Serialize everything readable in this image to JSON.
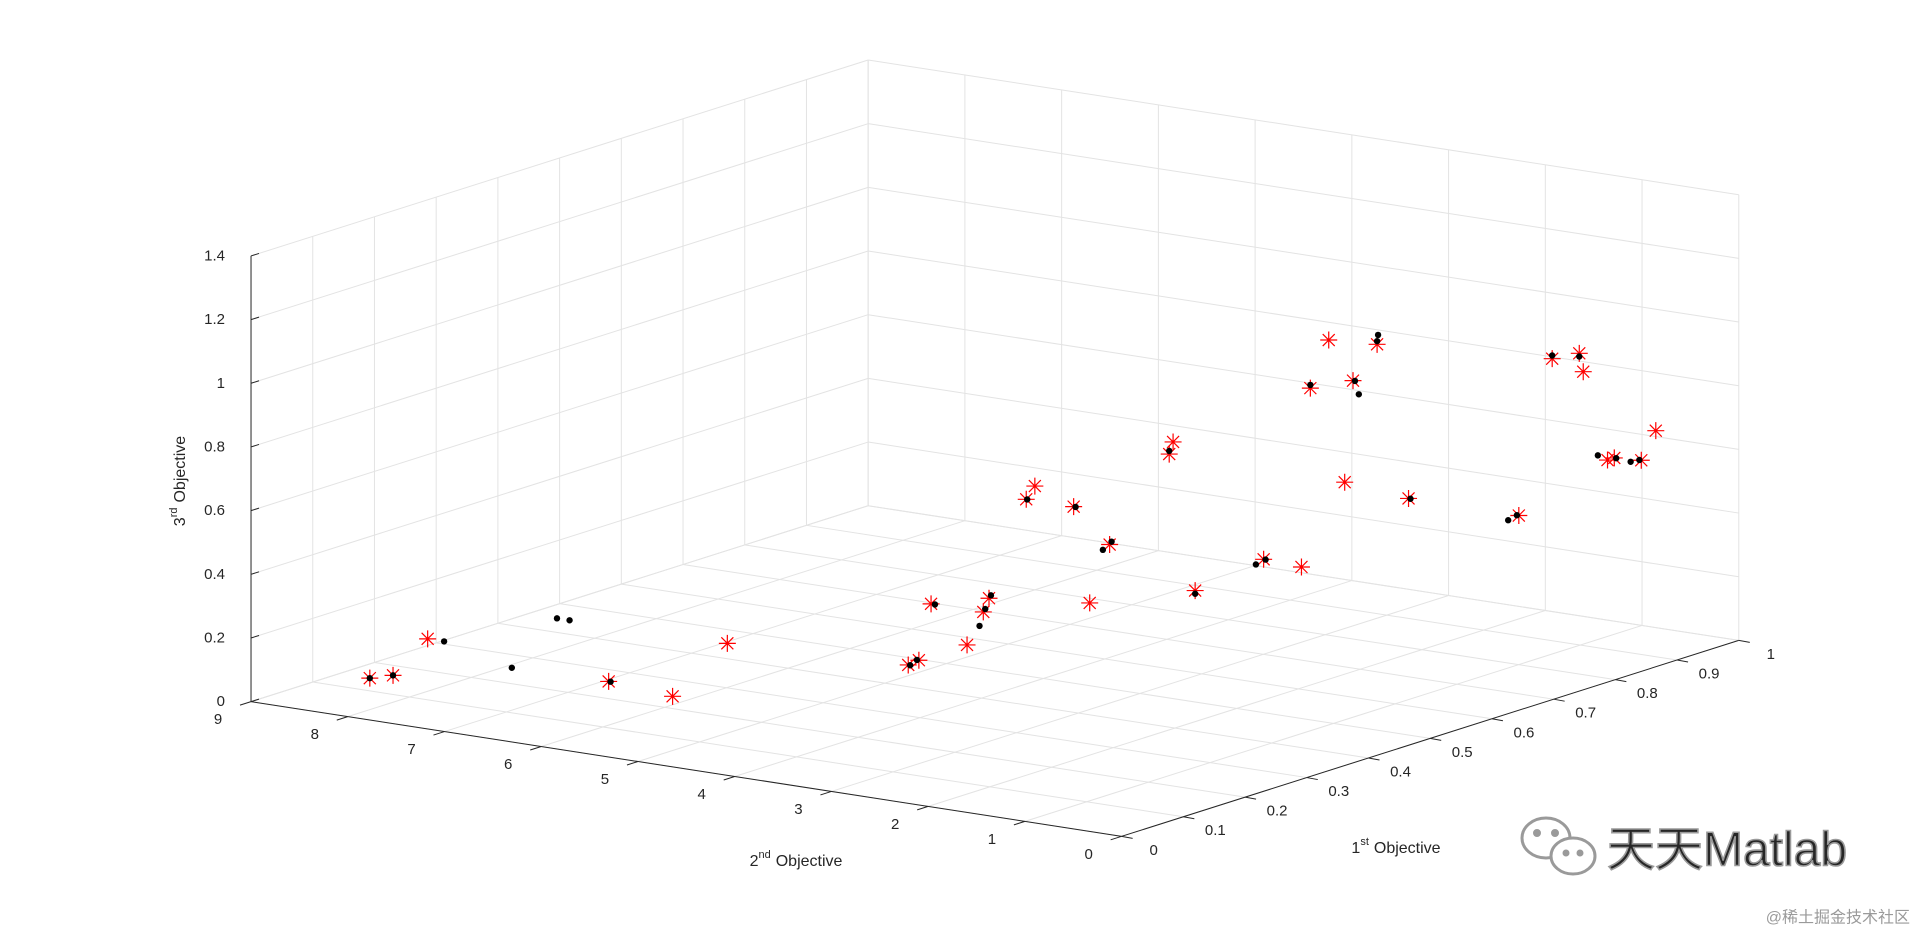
{
  "chart_data": {
    "type": "scatter3d",
    "xlabel": [
      "1",
      "st",
      "Objective"
    ],
    "ylabel": [
      "2",
      "nd",
      "Objective"
    ],
    "zlabel": [
      "3",
      "rd",
      "Objective"
    ],
    "xlim": [
      0,
      1
    ],
    "ylim": [
      0,
      9
    ],
    "zlim": [
      0,
      1.4
    ],
    "xticks": [
      0,
      0.1,
      0.2,
      0.3,
      0.4,
      0.5,
      0.6,
      0.7,
      0.8,
      0.9,
      1
    ],
    "yticks": [
      0,
      1,
      2,
      3,
      4,
      5,
      6,
      7,
      8,
      9
    ],
    "zticks": [
      0,
      0.2,
      0.4,
      0.6,
      0.8,
      1,
      1.2,
      1.4
    ],
    "grid": true,
    "series": [
      {
        "color": "#ff0000",
        "marker": "asterisk",
        "x": [
          0.1,
          0.1,
          0.2,
          0.15,
          0.1,
          0.3,
          0.3,
          0.3,
          0.5,
          0.4,
          0.5,
          0.55,
          0.8,
          0.85,
          0.8,
          0.5,
          0.7,
          0.9,
          0.9,
          0.5,
          0.6,
          0.55,
          0.95,
          0.95,
          0.7,
          0.9,
          0.95,
          0.7,
          0.7,
          0.95,
          0.95,
          0.9,
          0.85,
          0.85,
          0.9,
          0.9
        ],
        "y": [
          8.41,
          8.17,
          8.45,
          6.26,
          5.28,
          5.99,
          4.12,
          4.01,
          5.16,
          4.15,
          4.62,
          4.88,
          6.09,
          6.32,
          5.6,
          3.52,
          4.59,
          5.25,
          5.21,
          2.43,
          2.36,
          1.65,
          4.11,
          3.92,
          2.16,
          3.35,
          3.42,
          1.5,
          0.36,
          1.61,
          1.33,
          0.97,
          0.4,
          0.33,
          0.37,
          0.22
        ],
        "z": [
          0.04,
          0.06,
          0.1,
          0.1,
          0.13,
          0.14,
          0.16,
          0.18,
          0.18,
          0.16,
          0.18,
          0.18,
          0.28,
          0.28,
          0.28,
          0.26,
          0.27,
          0.4,
          0.44,
          0.35,
          0.39,
          0.43,
          0.63,
          0.79,
          0.58,
          0.72,
          0.8,
          0.56,
          0.56,
          0.84,
          0.87,
          0.86,
          0.64,
          0.65,
          0.61,
          0.71
        ]
      },
      {
        "color": "#000000",
        "marker": "dot",
        "x": [
          0.2,
          0.2,
          0.35,
          0.35,
          0.45,
          0.7,
          0.6,
          0.9,
          0.95,
          0.7,
          0.85,
          0.9,
          0.1,
          0.1,
          0.15,
          0.3,
          0.3,
          0.5,
          0.5,
          0.55,
          0.8,
          0.8,
          0.7,
          0.9,
          0.5,
          0.6,
          0.95,
          0.9,
          0.95,
          0.7,
          0.95,
          0.95,
          0.85,
          0.9,
          0.7
        ],
        "y": [
          8.28,
          7.58,
          8.07,
          7.94,
          4.34,
          4.66,
          2.44,
          3.29,
          3.41,
          0.47,
          0.5,
          0.48,
          8.41,
          8.17,
          6.24,
          4.1,
          4.03,
          5.12,
          4.6,
          4.86,
          6.08,
          5.58,
          4.57,
          5.25,
          2.43,
          2.34,
          4.11,
          3.33,
          3.42,
          1.48,
          1.61,
          1.33,
          0.31,
          0.39,
          0.38
        ],
        "z": [
          0.1,
          0.05,
          0.09,
          0.09,
          0.18,
          0.25,
          0.37,
          0.68,
          0.83,
          0.54,
          0.65,
          0.6,
          0.04,
          0.06,
          0.1,
          0.16,
          0.18,
          0.18,
          0.19,
          0.19,
          0.28,
          0.28,
          0.28,
          0.41,
          0.34,
          0.39,
          0.64,
          0.72,
          0.81,
          0.56,
          0.85,
          0.86,
          0.65,
          0.61,
          0.56
        ]
      }
    ]
  },
  "watermark": "天天Matlab",
  "credit": "@稀土掘金技术社区"
}
